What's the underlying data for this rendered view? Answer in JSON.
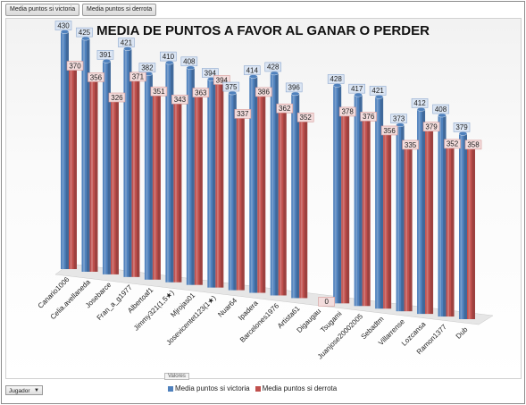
{
  "filters": {
    "victoria": "Media puntos si victoria",
    "derrota": "Media puntos si derrota"
  },
  "legend": {
    "title": "Valores",
    "item1": "Media puntos si victoria",
    "item2": "Media puntos si derrota"
  },
  "player_filter": {
    "label": "Jugador",
    "icon": "dropdown-arrow-icon"
  },
  "colors": {
    "victoria": "#4f81bd",
    "derrota": "#c0504d"
  },
  "chart_data": {
    "type": "bar",
    "title": "MEDIA DE PUNTOS A FAVOR AL GANAR O PERDER",
    "categories": [
      "Canario1006",
      "Celia.avellaneda",
      "Josebarce",
      "Fran_a_g1977",
      "Albertoaf1",
      "Jimmy321(1,5★)",
      "Mjrojas01",
      "Josevicentet123(1★)",
      "Nuar64",
      "Ipadera",
      "Barcelones1976",
      "Artista61",
      "Digaugau",
      "Tsugami",
      "Juanjose20002005",
      "Sebadtm",
      "Villarrense",
      "Lozcansa",
      "Ramon1377",
      "Dub"
    ],
    "series": [
      {
        "name": "Media puntos si victoria",
        "values": [
          430,
          425,
          391,
          421,
          382,
          410,
          408,
          394,
          375,
          414,
          428,
          396,
          null,
          428,
          417,
          421,
          373,
          412,
          408,
          379
        ]
      },
      {
        "name": "Media puntos si derrota",
        "values": [
          370,
          356,
          326,
          371,
          351,
          343,
          363,
          394,
          337,
          386,
          362,
          352,
          0,
          378,
          376,
          356,
          335,
          379,
          352,
          358
        ]
      }
    ],
    "ylim": [
      0,
      460
    ],
    "grid": false,
    "legend_position": "bottom"
  }
}
